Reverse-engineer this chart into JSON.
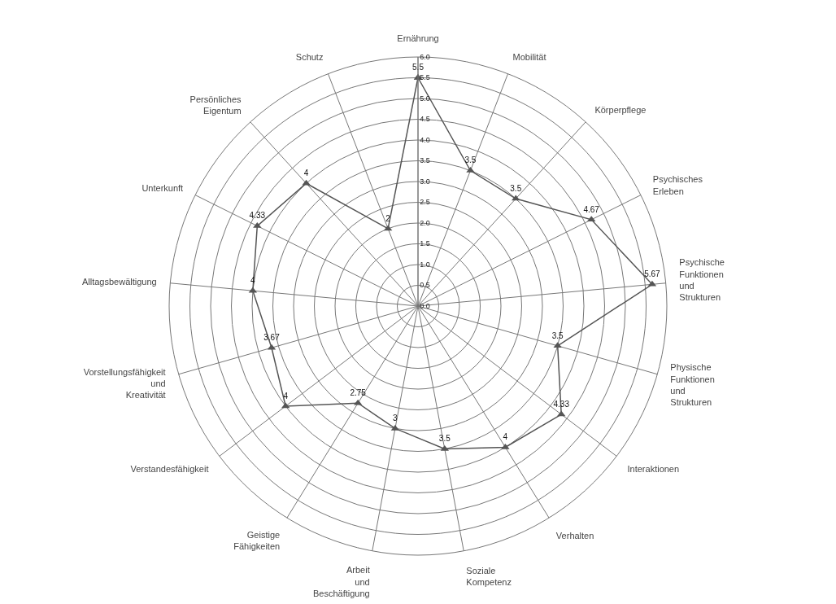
{
  "chart_data": {
    "type": "radar",
    "categories": [
      "Ernährung",
      "Mobilität",
      "Körperpflege",
      "Psychisches\nErleben",
      "Psychische\nFunktionen\nund\nStrukturen",
      "Physische\nFunktionen\nund\nStrukturen",
      "Interaktionen",
      "Verhalten",
      "Soziale\nKompetenz",
      "Arbeit\nund\nBeschäftigung",
      "Geistige\nFähigkeiten",
      "Verstandesfähigkeit",
      "Vorstellungsfähigkeit\nund\nKreativität",
      "Alltagsbewältigung",
      "Unterkunft",
      "Persönliches\nEigentum",
      "Schutz"
    ],
    "series": [
      {
        "color": "#555555",
        "values": [
          5.5,
          3.5,
          3.5,
          4.67,
          5.67,
          3.5,
          4.33,
          4,
          3.5,
          3,
          2.75,
          4,
          3.67,
          4,
          4.33,
          4,
          2
        ]
      }
    ],
    "data_labels": true,
    "marker": "triangle",
    "line_style": "solid",
    "grid": true,
    "ylim": [
      0,
      6
    ],
    "yticks": [
      {
        "value": 0,
        "label": "0.0"
      },
      {
        "value": 0.5,
        "label": "0.5"
      },
      {
        "value": 1,
        "label": "1.0"
      },
      {
        "value": 1.5,
        "label": "1.5"
      },
      {
        "value": 2,
        "label": "2.0"
      },
      {
        "value": 2.5,
        "label": "2.5"
      },
      {
        "value": 3,
        "label": "3.0"
      },
      {
        "value": 3.5,
        "label": "3.5"
      },
      {
        "value": 4,
        "label": "4.0"
      },
      {
        "value": 4.5,
        "label": "4.5"
      },
      {
        "value": 5,
        "label": "5.0"
      },
      {
        "value": 5.5,
        "label": "5.5"
      },
      {
        "value": 6,
        "label": "6.0"
      }
    ]
  }
}
